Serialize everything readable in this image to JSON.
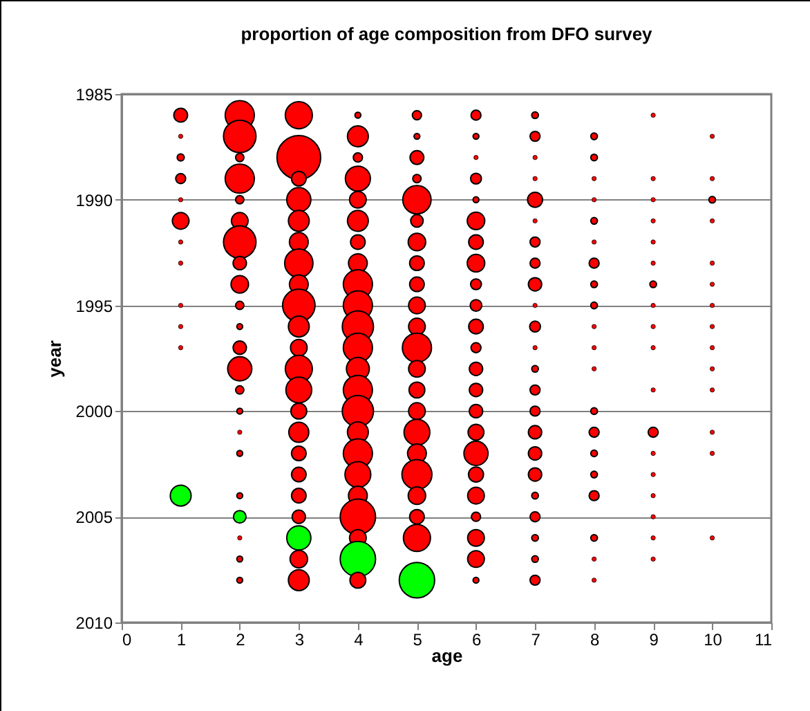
{
  "chart_data": {
    "type": "bubble",
    "title": "proportion of age composition from DFO survey",
    "xlabel": "age",
    "ylabel": "year",
    "xlim": [
      0,
      11
    ],
    "xticks": [
      0,
      1,
      2,
      3,
      4,
      5,
      6,
      7,
      8,
      9,
      10,
      11
    ],
    "ylim": [
      2010,
      1985
    ],
    "yticks": [
      1985,
      1990,
      1995,
      2000,
      2005,
      2010
    ],
    "grid": "y",
    "marker": "circle",
    "series": [
      {
        "color": "#ff0000",
        "x": [
          1,
          1,
          1,
          1,
          1,
          1,
          1,
          1,
          1,
          1,
          1,
          2,
          2,
          2,
          2,
          2,
          2,
          2,
          2,
          2,
          2,
          2,
          2,
          2,
          2,
          2,
          2,
          2,
          2,
          2,
          2,
          2,
          3,
          3,
          3,
          3,
          3,
          3,
          3,
          3,
          3,
          3,
          3,
          3,
          3,
          3,
          3,
          3,
          3,
          3,
          3,
          3,
          3,
          4,
          4,
          4,
          4,
          4,
          4,
          4,
          4,
          4,
          4,
          4,
          4,
          4,
          4,
          4,
          4,
          4,
          4,
          4,
          4,
          4,
          4,
          5,
          5,
          5,
          5,
          5,
          5,
          5,
          5,
          5,
          5,
          5,
          5,
          5,
          5,
          5,
          5,
          5,
          5,
          5,
          5,
          5,
          6,
          6,
          6,
          6,
          6,
          6,
          6,
          6,
          6,
          6,
          6,
          6,
          6,
          6,
          6,
          6,
          6,
          6,
          6,
          6,
          6,
          6,
          6,
          7,
          7,
          7,
          7,
          7,
          7,
          7,
          7,
          7,
          7,
          7,
          7,
          7,
          7,
          7,
          7,
          7,
          7,
          7,
          7,
          7,
          7,
          7,
          8,
          8,
          8,
          8,
          8,
          8,
          8,
          8,
          8,
          8,
          8,
          8,
          8,
          8,
          8,
          8,
          8,
          8,
          8,
          8,
          9,
          9,
          9,
          9,
          9,
          9,
          9,
          9,
          9,
          9,
          9,
          9,
          9,
          9,
          9,
          9,
          9,
          9,
          10,
          10,
          10,
          10,
          10,
          10,
          10,
          10,
          10,
          10,
          10,
          10,
          10,
          10
        ],
        "values": [
          1986,
          1987,
          1988,
          1989,
          1990,
          1991,
          1992,
          1993,
          1995,
          1996,
          1997,
          1986,
          1987,
          1988,
          1989,
          1990,
          1991,
          1992,
          1993,
          1994,
          1995,
          1996,
          1997,
          1998,
          1999,
          2000,
          2001,
          2002,
          2004,
          2006,
          2007,
          2008,
          1986,
          1988,
          1989,
          1990,
          1991,
          1992,
          1993,
          1994,
          1995,
          1996,
          1997,
          1998,
          1999,
          2000,
          2001,
          2002,
          2003,
          2004,
          2005,
          2007,
          2008,
          1986,
          1987,
          1988,
          1989,
          1990,
          1991,
          1992,
          1993,
          1994,
          1995,
          1996,
          1997,
          1998,
          1999,
          2000,
          2001,
          2002,
          2003,
          2004,
          2005,
          2006,
          2008,
          1986,
          1987,
          1988,
          1989,
          1990,
          1991,
          1992,
          1993,
          1994,
          1995,
          1996,
          1997,
          1998,
          1999,
          2000,
          2001,
          2002,
          2003,
          2004,
          2005,
          2006,
          1986,
          1987,
          1988,
          1989,
          1990,
          1991,
          1992,
          1993,
          1994,
          1995,
          1996,
          1997,
          1998,
          1999,
          2000,
          2001,
          2002,
          2003,
          2004,
          2005,
          2006,
          2007,
          2008,
          1986,
          1987,
          1988,
          1989,
          1990,
          1991,
          1992,
          1993,
          1994,
          1995,
          1996,
          1997,
          1998,
          1999,
          2000,
          2001,
          2002,
          2003,
          2004,
          2005,
          2006,
          2007,
          2008,
          1987,
          1988,
          1989,
          1990,
          1991,
          1992,
          1993,
          1994,
          1995,
          1996,
          1997,
          1998,
          2000,
          2001,
          2002,
          2003,
          2004,
          2006,
          2007,
          2008,
          1986,
          1989,
          1990,
          1991,
          1992,
          1993,
          1994,
          1995,
          1996,
          1997,
          1999,
          2001,
          2002,
          2003,
          2004,
          2005,
          2006,
          2007,
          1987,
          1989,
          1990,
          1991,
          1993,
          1994,
          1995,
          1996,
          1997,
          1998,
          1999,
          2001,
          2002,
          2006
        ],
        "sizes": [
          0.099,
          0.01,
          0.026,
          0.052,
          0.01,
          0.145,
          0.01,
          0.01,
          0.01,
          0.01,
          0.01,
          0.444,
          0.552,
          0.036,
          0.444,
          0.036,
          0.145,
          0.552,
          0.093,
          0.16,
          0.036,
          0.018,
          0.093,
          0.305,
          0.036,
          0.018,
          0.01,
          0.018,
          0.018,
          0.01,
          0.018,
          0.018,
          0.383,
          1,
          0.111,
          0.305,
          0.227,
          0.184,
          0.419,
          0.184,
          0.552,
          0.227,
          0.145,
          0.383,
          0.349,
          0.131,
          0.209,
          0.111,
          0.111,
          0.111,
          0.093,
          0.16,
          0.227,
          0.018,
          0.227,
          0.044,
          0.327,
          0.145,
          0.227,
          0.111,
          0.184,
          0.444,
          0.444,
          0.51,
          0.444,
          0.274,
          0.444,
          0.51,
          0.227,
          0.444,
          0.349,
          0.184,
          0.655,
          0.145,
          0.131,
          0.044,
          0.018,
          0.099,
          0.036,
          0.419,
          0.082,
          0.16,
          0.111,
          0.111,
          0.145,
          0.145,
          0.444,
          0.145,
          0.131,
          0.145,
          0.349,
          0.184,
          0.47,
          0.16,
          0.111,
          0.383,
          0.052,
          0.018,
          0.01,
          0.061,
          0.018,
          0.16,
          0.111,
          0.16,
          0.061,
          0.071,
          0.111,
          0.052,
          0.093,
          0.093,
          0.093,
          0.131,
          0.305,
          0.118,
          0.145,
          0.044,
          0.145,
          0.145,
          0.018,
          0.023,
          0.052,
          0.01,
          0.01,
          0.118,
          0.01,
          0.052,
          0.052,
          0.093,
          0.01,
          0.061,
          0.01,
          0.023,
          0.052,
          0.052,
          0.093,
          0.093,
          0.093,
          0.023,
          0.052,
          0.023,
          0.023,
          0.052,
          0.023,
          0.023,
          0.01,
          0.01,
          0.023,
          0.01,
          0.052,
          0.023,
          0.023,
          0.01,
          0.01,
          0.01,
          0.023,
          0.052,
          0.023,
          0.023,
          0.052,
          0.023,
          0.01,
          0.01,
          0.01,
          0.01,
          0.01,
          0.01,
          0.01,
          0.01,
          0.023,
          0.01,
          0.01,
          0.01,
          0.01,
          0.052,
          0.01,
          0.01,
          0.01,
          0.01,
          0.01,
          0.01,
          0.01,
          0.01,
          0.023,
          0.01,
          0.01,
          0.01,
          0.01,
          0.01,
          0.01,
          0.01,
          0.01,
          0.01,
          0.01,
          0.01
        ]
      },
      {
        "color": "#00ff00",
        "x": [
          1,
          2,
          3,
          4,
          5
        ],
        "values": [
          2004,
          2005,
          2006,
          2007,
          2008
        ],
        "sizes": [
          0.227,
          0.082,
          0.305,
          0.655,
          0.655
        ]
      }
    ]
  }
}
